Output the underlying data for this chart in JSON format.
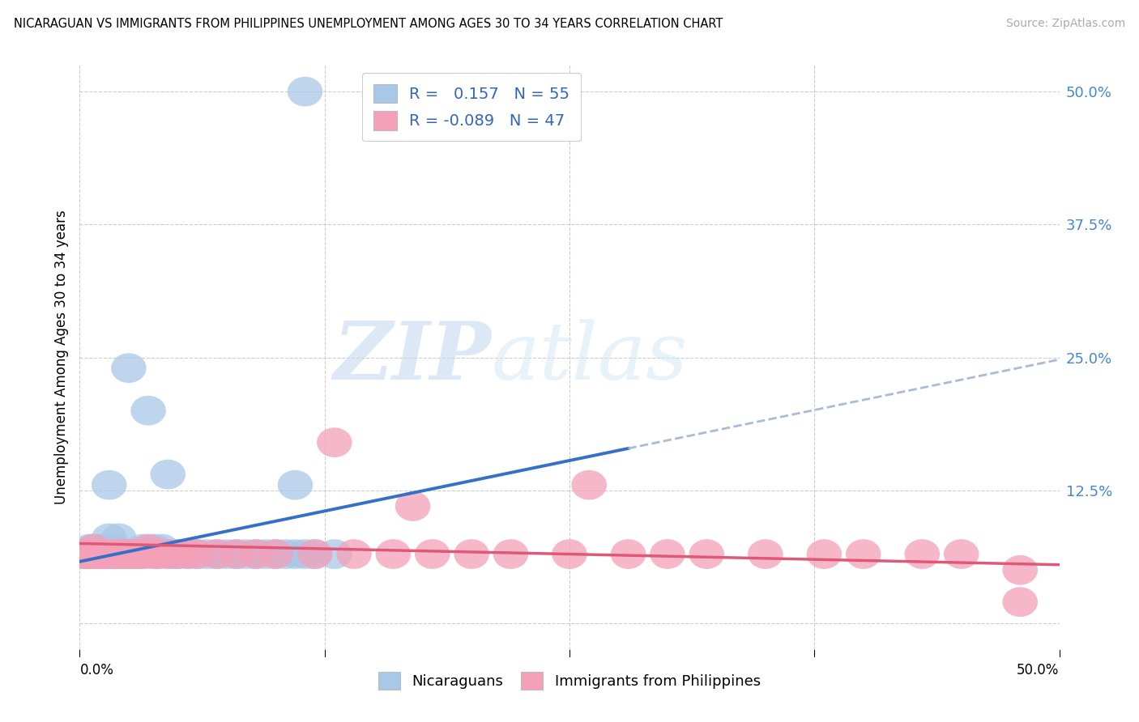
{
  "title": "NICARAGUAN VS IMMIGRANTS FROM PHILIPPINES UNEMPLOYMENT AMONG AGES 30 TO 34 YEARS CORRELATION CHART",
  "source": "Source: ZipAtlas.com",
  "ylabel": "Unemployment Among Ages 30 to 34 years",
  "xmin": 0.0,
  "xmax": 0.5,
  "ymin": -0.025,
  "ymax": 0.525,
  "blue_color": "#a8c8e8",
  "pink_color": "#f4a0b8",
  "blue_line_color": "#3570c8",
  "pink_line_color": "#e05878",
  "dash_color": "#aabbd8",
  "legend_R_blue": "0.157",
  "legend_N_blue": "55",
  "legend_R_pink": "-0.089",
  "legend_N_pink": "47",
  "label_blue": "Nicaraguans",
  "label_pink": "Immigrants from Philippines",
  "watermark_zip": "ZIP",
  "watermark_atlas": "atlas",
  "ytick_vals": [
    0.0,
    0.125,
    0.25,
    0.375,
    0.5
  ],
  "ytick_labels": [
    "",
    "12.5%",
    "25.0%",
    "37.5%",
    "50.0%"
  ],
  "xtick_positions": [
    0.0,
    0.125,
    0.25,
    0.375,
    0.5
  ],
  "blue_x": [
    0.002,
    0.003,
    0.004,
    0.005,
    0.005,
    0.006,
    0.007,
    0.008,
    0.009,
    0.01,
    0.01,
    0.012,
    0.013,
    0.015,
    0.015,
    0.016,
    0.018,
    0.019,
    0.02,
    0.02,
    0.022,
    0.023,
    0.025,
    0.026,
    0.028,
    0.03,
    0.032,
    0.035,
    0.038,
    0.04,
    0.042,
    0.045,
    0.048,
    0.05,
    0.055,
    0.06,
    0.065,
    0.07,
    0.075,
    0.08,
    0.085,
    0.09,
    0.095,
    0.1,
    0.105,
    0.11,
    0.115,
    0.12,
    0.13,
    0.015,
    0.025,
    0.035,
    0.045,
    0.115,
    0.11
  ],
  "blue_y": [
    0.065,
    0.065,
    0.065,
    0.065,
    0.07,
    0.065,
    0.07,
    0.065,
    0.07,
    0.065,
    0.07,
    0.065,
    0.07,
    0.065,
    0.08,
    0.065,
    0.07,
    0.065,
    0.065,
    0.08,
    0.065,
    0.065,
    0.065,
    0.065,
    0.065,
    0.065,
    0.07,
    0.065,
    0.07,
    0.065,
    0.07,
    0.065,
    0.065,
    0.065,
    0.065,
    0.065,
    0.065,
    0.065,
    0.065,
    0.065,
    0.065,
    0.065,
    0.065,
    0.065,
    0.065,
    0.065,
    0.065,
    0.065,
    0.065,
    0.13,
    0.24,
    0.2,
    0.14,
    0.5,
    0.13
  ],
  "pink_x": [
    0.002,
    0.003,
    0.005,
    0.006,
    0.007,
    0.008,
    0.01,
    0.012,
    0.015,
    0.018,
    0.02,
    0.022,
    0.025,
    0.028,
    0.03,
    0.032,
    0.035,
    0.038,
    0.04,
    0.045,
    0.05,
    0.055,
    0.06,
    0.07,
    0.08,
    0.09,
    0.1,
    0.12,
    0.14,
    0.16,
    0.18,
    0.2,
    0.22,
    0.25,
    0.28,
    0.3,
    0.32,
    0.35,
    0.38,
    0.4,
    0.43,
    0.45,
    0.48,
    0.13,
    0.17,
    0.26,
    0.48
  ],
  "pink_y": [
    0.065,
    0.065,
    0.065,
    0.065,
    0.07,
    0.065,
    0.065,
    0.065,
    0.065,
    0.065,
    0.065,
    0.065,
    0.065,
    0.065,
    0.065,
    0.065,
    0.07,
    0.065,
    0.065,
    0.065,
    0.065,
    0.065,
    0.065,
    0.065,
    0.065,
    0.065,
    0.065,
    0.065,
    0.065,
    0.065,
    0.065,
    0.065,
    0.065,
    0.065,
    0.065,
    0.065,
    0.065,
    0.065,
    0.065,
    0.065,
    0.065,
    0.065,
    0.02,
    0.17,
    0.11,
    0.13,
    0.05
  ]
}
